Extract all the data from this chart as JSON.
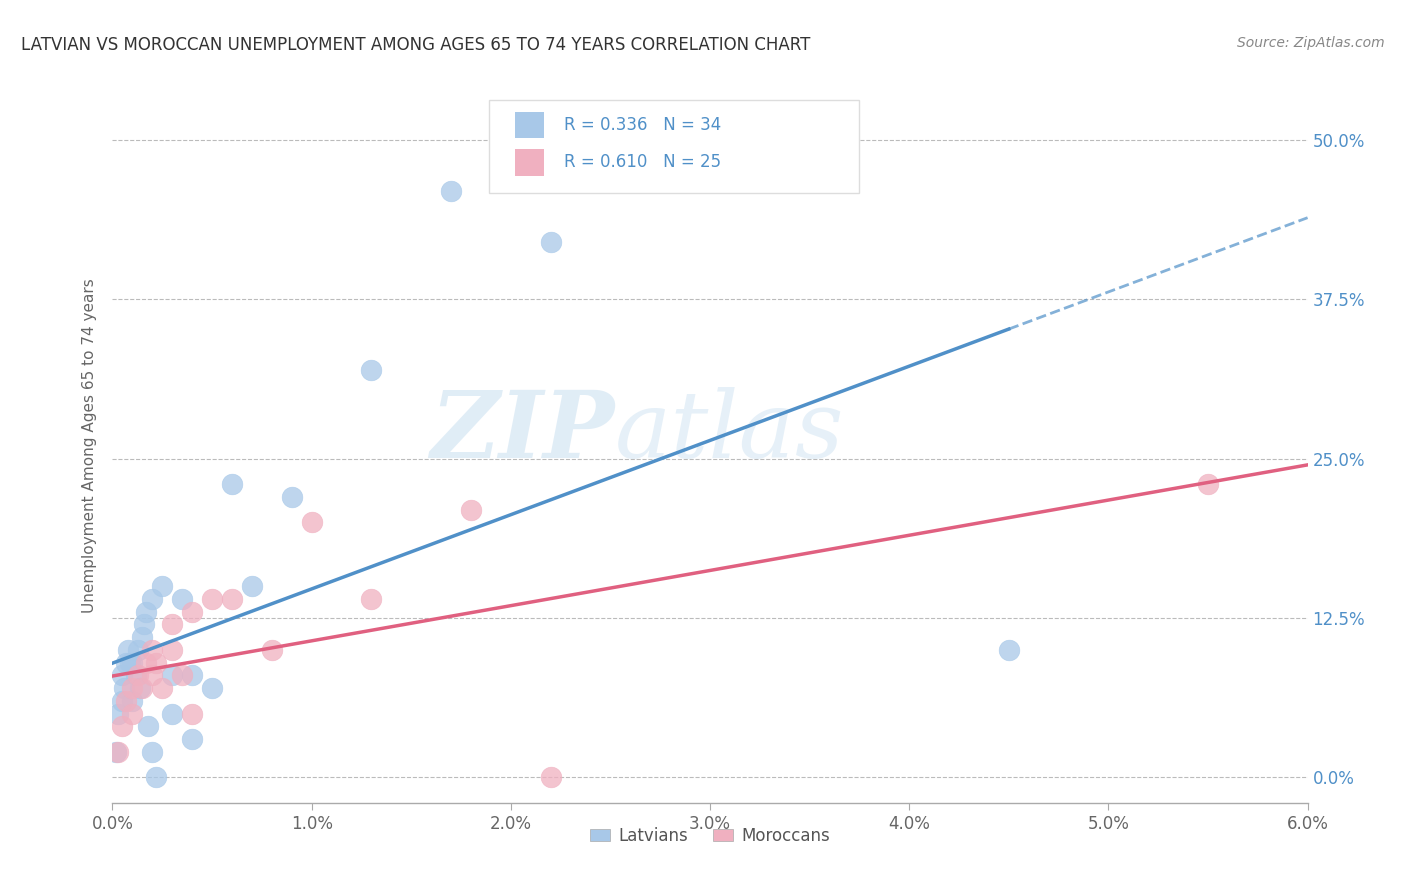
{
  "title": "LATVIAN VS MOROCCAN UNEMPLOYMENT AMONG AGES 65 TO 74 YEARS CORRELATION CHART",
  "source": "Source: ZipAtlas.com",
  "ylabel": "Unemployment Among Ages 65 to 74 years",
  "xlim": [
    0.0,
    0.06
  ],
  "ylim": [
    -0.02,
    0.54
  ],
  "latvian_color": "#a8c8e8",
  "latvian_line_color": "#5090c8",
  "moroccan_color": "#f0b0c0",
  "moroccan_line_color": "#e06080",
  "latvian_R": "0.336",
  "latvian_N": "34",
  "moroccan_R": "0.610",
  "moroccan_N": "25",
  "latvians_x": [
    0.0002,
    0.0003,
    0.0005,
    0.0005,
    0.0006,
    0.0007,
    0.0008,
    0.0009,
    0.001,
    0.001,
    0.0012,
    0.0013,
    0.0014,
    0.0015,
    0.0016,
    0.0017,
    0.0018,
    0.002,
    0.002,
    0.0022,
    0.0025,
    0.003,
    0.003,
    0.0035,
    0.004,
    0.004,
    0.005,
    0.006,
    0.007,
    0.009,
    0.013,
    0.017,
    0.022,
    0.045
  ],
  "latvians_y": [
    0.02,
    0.05,
    0.06,
    0.08,
    0.07,
    0.09,
    0.1,
    0.09,
    0.06,
    0.09,
    0.08,
    0.1,
    0.07,
    0.11,
    0.12,
    0.13,
    0.04,
    0.14,
    0.02,
    0.0,
    0.15,
    0.08,
    0.05,
    0.14,
    0.08,
    0.03,
    0.07,
    0.23,
    0.15,
    0.22,
    0.32,
    0.46,
    0.42,
    0.1
  ],
  "moroccans_x": [
    0.0003,
    0.0005,
    0.0007,
    0.001,
    0.001,
    0.0013,
    0.0015,
    0.0017,
    0.002,
    0.002,
    0.0022,
    0.0025,
    0.003,
    0.003,
    0.0035,
    0.004,
    0.004,
    0.005,
    0.006,
    0.008,
    0.01,
    0.013,
    0.018,
    0.022,
    0.055
  ],
  "moroccans_y": [
    0.02,
    0.04,
    0.06,
    0.05,
    0.07,
    0.08,
    0.07,
    0.09,
    0.1,
    0.08,
    0.09,
    0.07,
    0.1,
    0.12,
    0.08,
    0.05,
    0.13,
    0.14,
    0.14,
    0.1,
    0.2,
    0.14,
    0.21,
    0.0,
    0.23
  ],
  "watermark_zip": "ZIP",
  "watermark_atlas": "atlas",
  "background_color": "#ffffff",
  "grid_color": "#cccccc"
}
